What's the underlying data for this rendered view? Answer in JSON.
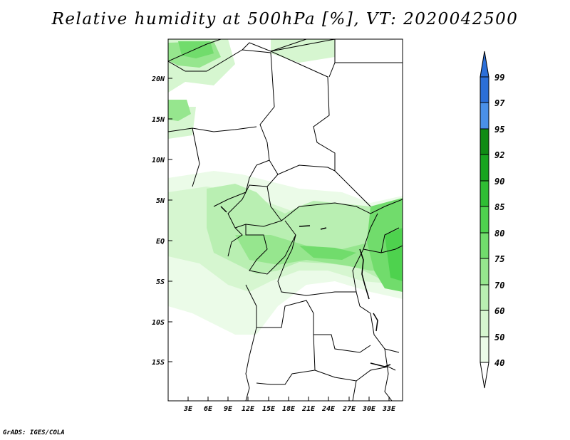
{
  "title": "Relative humidity at 500hPa [%], VT: 2020042500",
  "credit": "GrADS: IGES/COLA",
  "map": {
    "y_ticks": [
      "20N",
      "15N",
      "10N",
      "5N",
      "EQ",
      "5S",
      "10S",
      "15S"
    ],
    "x_ticks": [
      "3E",
      "6E",
      "9E",
      "12E",
      "15E",
      "18E",
      "21E",
      "24E",
      "27E",
      "30E",
      "33E"
    ]
  },
  "colorbar": {
    "labels": [
      "99",
      "97",
      "95",
      "92",
      "90",
      "85",
      "80",
      "75",
      "70",
      "60",
      "50",
      "40"
    ],
    "colors": [
      "#2c6fd8",
      "#1f5fd0",
      "#4a90e8",
      "#0f8c14",
      "#18a51f",
      "#2fbe34",
      "#4ed24e",
      "#71dc6c",
      "#96e68e",
      "#b9efb2",
      "#d6f6d0",
      "#ebfbe8"
    ]
  }
}
